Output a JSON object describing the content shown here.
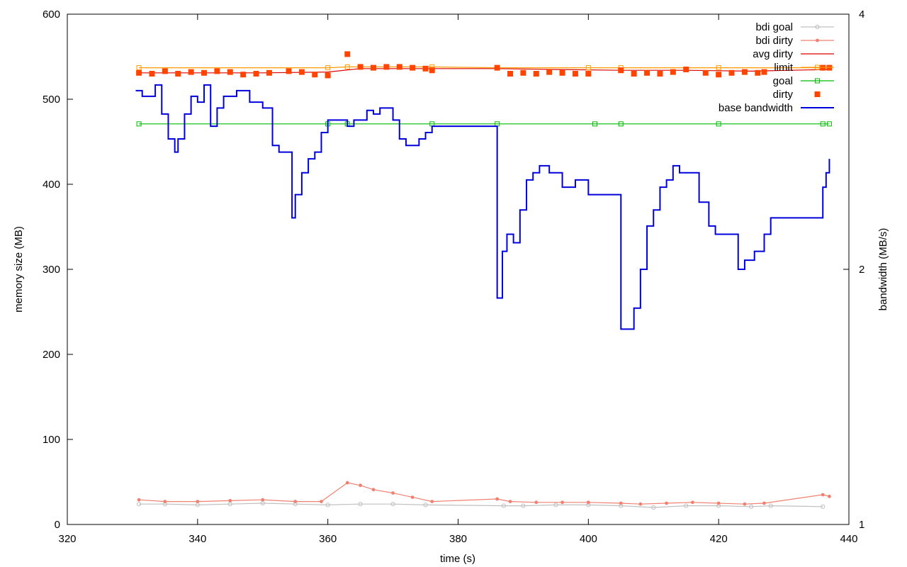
{
  "chart_data": {
    "type": "line",
    "xlabel": "time (s)",
    "ylabel": "memory size (MB)",
    "y2label": "bandwidth (MB/s)",
    "xlim": [
      320,
      440
    ],
    "ylim": [
      0,
      600
    ],
    "y2lim": [
      1,
      4
    ],
    "y2scale": "log",
    "x_ticks": [
      320,
      340,
      360,
      380,
      400,
      420,
      440
    ],
    "y_ticks": [
      0,
      100,
      200,
      300,
      400,
      500,
      600
    ],
    "y2_ticks": [
      1,
      2,
      4
    ],
    "grid": false,
    "legend_position": "top-right",
    "series": [
      {
        "name": "bdi goal",
        "axis": "y",
        "color": "#c0c0c0",
        "marker": "circle",
        "x": [
          331,
          335,
          340,
          345,
          350,
          355,
          360,
          365,
          370,
          375,
          387,
          390,
          395,
          400,
          405,
          410,
          415,
          420,
          425,
          428,
          436
        ],
        "y": [
          24,
          24,
          23,
          24,
          25,
          24,
          23,
          24,
          24,
          23,
          22,
          22,
          23,
          23,
          22,
          20,
          22,
          22,
          21,
          22,
          21
        ]
      },
      {
        "name": "bdi dirty",
        "axis": "y",
        "color": "#f08070",
        "marker": "dot",
        "x": [
          331,
          335,
          340,
          345,
          350,
          355,
          359,
          363,
          365,
          367,
          370,
          373,
          376,
          386,
          388,
          392,
          396,
          400,
          405,
          408,
          412,
          416,
          420,
          424,
          427,
          436,
          437
        ],
        "y": [
          29,
          27,
          27,
          28,
          29,
          27,
          27,
          49,
          46,
          41,
          37,
          32,
          27,
          30,
          27,
          26,
          26,
          26,
          25,
          24,
          25,
          26,
          25,
          24,
          25,
          35,
          33
        ]
      },
      {
        "name": "avg dirty",
        "axis": "y",
        "color": "#dd0000",
        "marker": "none",
        "x": [
          331,
          340,
          350,
          360,
          365,
          375,
          386,
          395,
          405,
          415,
          425,
          437
        ],
        "y": [
          531,
          531,
          531,
          532,
          536,
          536,
          536,
          535,
          534,
          534,
          533,
          535
        ]
      },
      {
        "name": "limit",
        "axis": "y",
        "color": "#ff9900",
        "marker": "square",
        "x": [
          331,
          360,
          363,
          376,
          386,
          400,
          405,
          420,
          437
        ],
        "y": [
          537,
          537,
          538,
          538,
          537,
          537,
          537,
          537,
          537
        ]
      },
      {
        "name": "goal",
        "axis": "y",
        "color": "#00bb00",
        "marker": "square",
        "x": [
          331,
          360,
          363,
          376,
          386,
          401,
          405,
          420,
          436,
          437
        ],
        "y": [
          471,
          471,
          471,
          471,
          471,
          471,
          471,
          471,
          471,
          471
        ]
      },
      {
        "name": "dirty",
        "axis": "y",
        "color": "#ff4400",
        "marker": "filled-square",
        "points_only": true,
        "x": [
          331,
          333,
          335,
          337,
          339,
          341,
          343,
          345,
          347,
          349,
          351,
          354,
          356,
          358,
          360,
          363,
          365,
          367,
          369,
          371,
          373,
          375,
          376,
          386,
          388,
          390,
          392,
          394,
          396,
          398,
          400,
          405,
          407,
          409,
          411,
          413,
          415,
          418,
          420,
          422,
          424,
          426,
          427,
          436,
          437
        ],
        "y": [
          531,
          530,
          533,
          530,
          532,
          531,
          533,
          532,
          529,
          530,
          531,
          533,
          532,
          529,
          528,
          553,
          538,
          537,
          538,
          538,
          537,
          536,
          534,
          537,
          530,
          531,
          530,
          532,
          531,
          530,
          530,
          534,
          530,
          531,
          530,
          532,
          535,
          531,
          529,
          531,
          532,
          531,
          532,
          537,
          537
        ]
      },
      {
        "name": "base bandwidth",
        "axis": "y2",
        "color": "#0000dd",
        "marker": "none",
        "step": true,
        "x": [
          330.5,
          331.5,
          333.5,
          334.5,
          335.5,
          336.5,
          337,
          338,
          339,
          340,
          341,
          342,
          343,
          344,
          346,
          348,
          350,
          351.5,
          352.5,
          354.5,
          355,
          356,
          357,
          358,
          359,
          360,
          362,
          363,
          364,
          366,
          367,
          368,
          370,
          371,
          372,
          373,
          374,
          375,
          376,
          386,
          386.8,
          387.5,
          388.5,
          389.5,
          390.5,
          391.5,
          392.5,
          394,
          396,
          398,
          400,
          401,
          405,
          407,
          408,
          409,
          410,
          411,
          412,
          413,
          414,
          415,
          416,
          417,
          418.5,
          419.5,
          421,
          423,
          424,
          425.5,
          427,
          428,
          431,
          436,
          436.5,
          437
        ],
        "y": [
          3.25,
          3.2,
          3.3,
          3.05,
          2.85,
          2.75,
          2.85,
          3.05,
          3.2,
          3.15,
          3.3,
          2.95,
          3.1,
          3.2,
          3.25,
          3.15,
          3.1,
          2.8,
          2.75,
          2.3,
          2.45,
          2.6,
          2.7,
          2.75,
          2.9,
          3.0,
          3.0,
          2.95,
          3.0,
          3.08,
          3.05,
          3.1,
          3.0,
          2.85,
          2.8,
          2.8,
          2.85,
          2.9,
          2.95,
          1.85,
          2.1,
          2.2,
          2.15,
          2.35,
          2.55,
          2.6,
          2.65,
          2.6,
          2.5,
          2.55,
          2.45,
          2.45,
          1.7,
          1.8,
          2.0,
          2.25,
          2.35,
          2.5,
          2.55,
          2.65,
          2.6,
          2.6,
          2.6,
          2.4,
          2.25,
          2.2,
          2.2,
          2.0,
          2.05,
          2.1,
          2.2,
          2.3,
          2.3,
          2.5,
          2.6,
          2.7
        ]
      }
    ]
  }
}
